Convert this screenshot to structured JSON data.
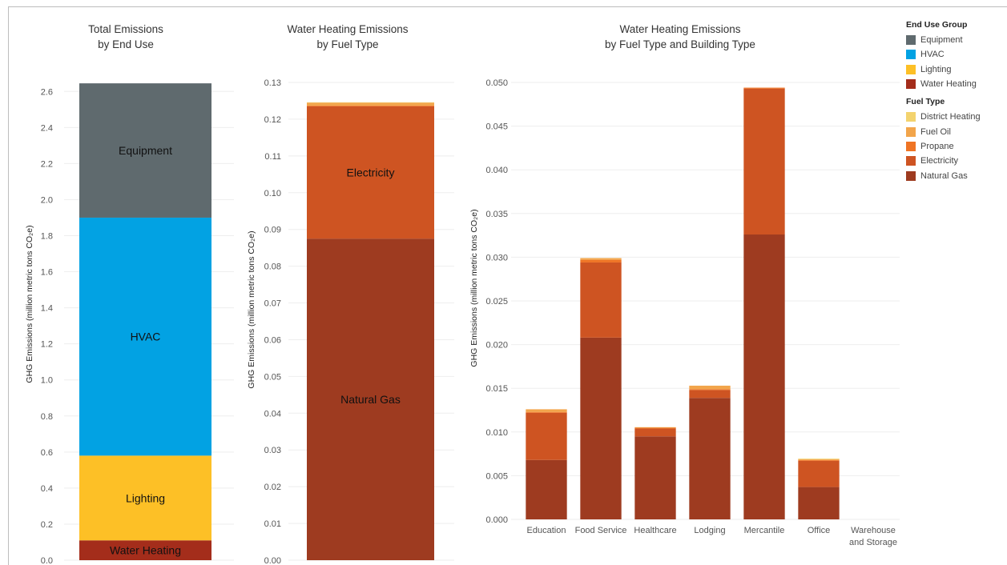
{
  "colors": {
    "equipment": "#5f6a6e",
    "hvac": "#02a2e3",
    "lighting": "#fdc026",
    "water_heating": "#a42d1b",
    "district_heating": "#f3d36e",
    "fuel_oil": "#f2a54b",
    "propane": "#ef7424",
    "electricity": "#ce5422",
    "natural_gas": "#9e3b20"
  },
  "legend": {
    "end_use_title": "End Use Group",
    "end_use": [
      {
        "label": "Equipment",
        "color": "#5f6a6e"
      },
      {
        "label": "HVAC",
        "color": "#02a2e3"
      },
      {
        "label": "Lighting",
        "color": "#fdc026"
      },
      {
        "label": "Water Heating",
        "color": "#a42d1b"
      }
    ],
    "fuel_title": "Fuel Type",
    "fuel": [
      {
        "label": "District Heating",
        "color": "#f3d36e"
      },
      {
        "label": "Fuel Oil",
        "color": "#f2a54b"
      },
      {
        "label": "Propane",
        "color": "#ef7424"
      },
      {
        "label": "Electricity",
        "color": "#ce5422"
      },
      {
        "label": "Natural Gas",
        "color": "#9e3b20"
      }
    ]
  },
  "chart_data": [
    {
      "type": "bar",
      "stacked": true,
      "title": "Total Emissions",
      "subtitle": "by End Use",
      "ylabel": "GHG Emissions (million metric tons CO₂e)",
      "ylim": [
        0,
        2.65
      ],
      "yticks": [
        "0.0",
        "0.2",
        "0.4",
        "0.6",
        "0.8",
        "1.0",
        "1.2",
        "1.4",
        "1.6",
        "1.8",
        "2.0",
        "2.2",
        "2.4",
        "2.6"
      ],
      "grid": true,
      "segments": [
        {
          "name": "Water Heating",
          "value": 0.11,
          "color": "#a42d1b"
        },
        {
          "name": "Lighting",
          "value": 0.47,
          "color": "#fdc026"
        },
        {
          "name": "HVAC",
          "value": 1.32,
          "color": "#02a2e3"
        },
        {
          "name": "Equipment",
          "value": 0.745,
          "color": "#5f6a6e"
        }
      ]
    },
    {
      "type": "bar",
      "stacked": true,
      "title": "Water Heating Emissions",
      "subtitle": "by Fuel Type",
      "ylabel": "GHG Emissions (million metric tons CO₂e)",
      "ylim": [
        0,
        0.13
      ],
      "yticks": [
        "0.00",
        "0.01",
        "0.02",
        "0.03",
        "0.04",
        "0.05",
        "0.06",
        "0.07",
        "0.08",
        "0.09",
        "0.10",
        "0.11",
        "0.12",
        "0.13"
      ],
      "grid": true,
      "segments": [
        {
          "name": "Natural Gas",
          "value": 0.0875,
          "color": "#9e3b20"
        },
        {
          "name": "Electricity",
          "value": 0.036,
          "color": "#ce5422"
        },
        {
          "name": "Propane",
          "value": 0.0002,
          "color": "#ef7424"
        },
        {
          "name": "Fuel Oil",
          "value": 0.0008,
          "color": "#f2a54b"
        },
        {
          "name": "District Heating",
          "value": 0.0001,
          "color": "#f3d36e"
        }
      ]
    },
    {
      "type": "bar",
      "stacked": true,
      "title": "Water Heating Emissions",
      "subtitle": "by Fuel Type and Building Type",
      "ylabel": "GHG Emissions (million metric tons CO₂e)",
      "ylim": [
        0,
        0.05
      ],
      "yticks": [
        "0.000",
        "0.005",
        "0.010",
        "0.015",
        "0.020",
        "0.025",
        "0.030",
        "0.035",
        "0.040",
        "0.045",
        "0.050"
      ],
      "grid": true,
      "categories": [
        "Education",
        "Food Service",
        "Healthcare",
        "Lodging",
        "Mercantile",
        "Office",
        "Warehouse and Storage"
      ],
      "series": [
        {
          "name": "Natural Gas",
          "color": "#9e3b20",
          "values": [
            0.0068,
            0.0208,
            0.0095,
            0.0139,
            0.0326,
            0.0037,
            0.0
          ]
        },
        {
          "name": "Electricity",
          "color": "#ce5422",
          "values": [
            0.0054,
            0.0086,
            0.0009,
            0.0009,
            0.0167,
            0.003,
            0.0
          ]
        },
        {
          "name": "Propane",
          "color": "#ef7424",
          "values": [
            0.0001,
            0.0003,
            0.0001,
            0.0001,
            0.0001,
            0.0001,
            0.0
          ]
        },
        {
          "name": "Fuel Oil",
          "color": "#f2a54b",
          "values": [
            0.0003,
            0.0002,
            5e-05,
            0.0004,
            0.0,
            0.0001,
            0.0
          ]
        },
        {
          "name": "District Heating",
          "color": "#f3d36e",
          "values": [
            0.0,
            0.0,
            0.0,
            0.0,
            0.0,
            5e-05,
            0.0
          ]
        }
      ]
    }
  ]
}
